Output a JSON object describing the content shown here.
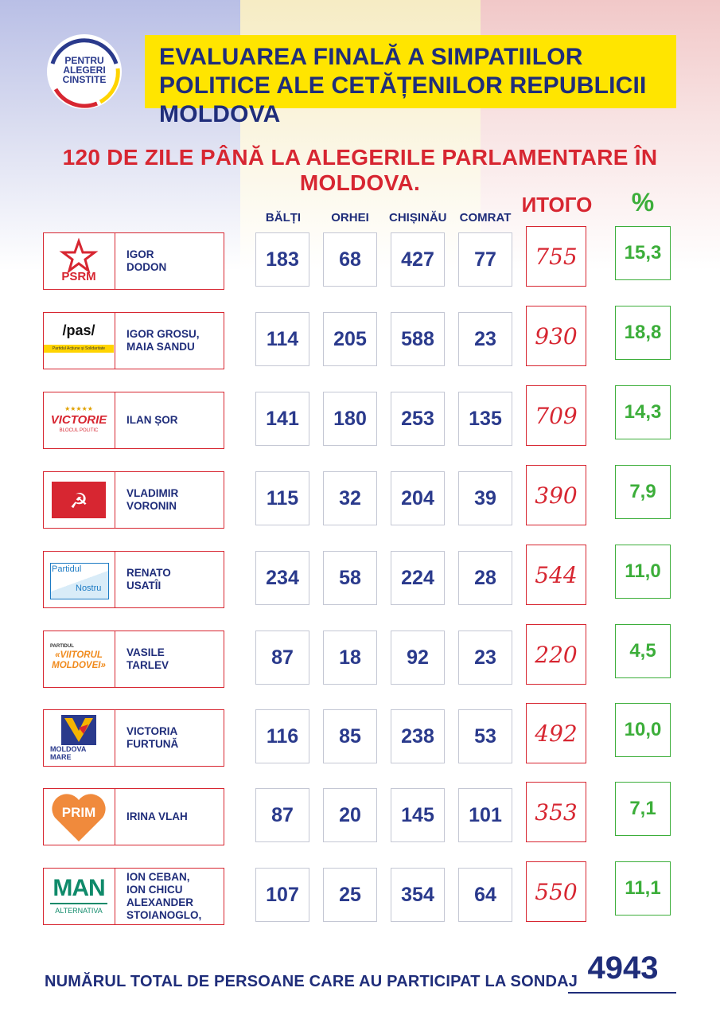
{
  "header": {
    "logo_text": "PENTRU\nALEGERI\nCINSTITE",
    "title": "EVALUAREA FINALĂ A SIMPATIILOR POLITICE ALE CETĂȚENILOR REPUBLICII MOLDOVA",
    "subtitle": "120 DE ZILE PÂNĂ LA ALEGERILE PARLAMENTARE ÎN MOLDOVA."
  },
  "columns": {
    "balti": "BĂLȚI",
    "orhei": "ORHEI",
    "chisinau": "CHIȘINĂU",
    "comrat": "COMRAT",
    "itogo": "ИТОГО",
    "pct": "%"
  },
  "rows": [
    {
      "logo": "PSRM",
      "name": "IGOR\nDODON",
      "v": [
        "183",
        "68",
        "427",
        "77"
      ],
      "total": "755",
      "pct": "15,3"
    },
    {
      "logo": "/pas/",
      "logo_sub": "Partidul Acțiune și Solidaritate",
      "name": "IGOR GROSU,\nMAIA SANDU",
      "v": [
        "114",
        "205",
        "588",
        "23"
      ],
      "total": "930",
      "pct": "18,8"
    },
    {
      "logo": "VICTORIE",
      "logo_sub": "BLOCUL POLITIC",
      "name": "ILAN ȘOR",
      "v": [
        "141",
        "180",
        "253",
        "135"
      ],
      "total": "709",
      "pct": "14,3"
    },
    {
      "logo": "☭",
      "name": "VLADIMIR\nVORONIN",
      "v": [
        "115",
        "32",
        "204",
        "39"
      ],
      "total": "390",
      "pct": "7,9"
    },
    {
      "logo": "Partidul",
      "logo_sub": "Nostru",
      "name": "RENATO\nUSATÎI",
      "v": [
        "234",
        "58",
        "224",
        "28"
      ],
      "total": "544",
      "pct": "11,0"
    },
    {
      "logo": "«VIITORUL\nMOLDOVEI»",
      "logo_sub": "PARTIDUL",
      "name": "VASILE\nTARLEV",
      "v": [
        "87",
        "18",
        "92",
        "23"
      ],
      "total": "220",
      "pct": "4,5"
    },
    {
      "logo": "MOLDOVA\nMARE",
      "name": "VICTORIA\nFURTUNĂ",
      "v": [
        "116",
        "85",
        "238",
        "53"
      ],
      "total": "492",
      "pct": "10,0"
    },
    {
      "logo": "PRIM",
      "name": "IRINA VLAH",
      "v": [
        "87",
        "20",
        "145",
        "101"
      ],
      "total": "353",
      "pct": "7,1"
    },
    {
      "logo": "MAN",
      "logo_sub": "ALTERNATIVA",
      "name": "ION CEBAN,\nION CHICU\nALEXANDER\nSTOIANOGLO,",
      "v": [
        "107",
        "25",
        "354",
        "64"
      ],
      "total": "550",
      "pct": "11,1"
    }
  ],
  "footer": {
    "label": "NUMĂRUL TOTAL DE PERSOANE CARE AU PARTICIPAT LA SONDAJ",
    "total": "4943"
  },
  "colors": {
    "navy": "#1f2d7a",
    "red": "#d72631",
    "green": "#3cae3a",
    "yellow": "#ffe500"
  }
}
